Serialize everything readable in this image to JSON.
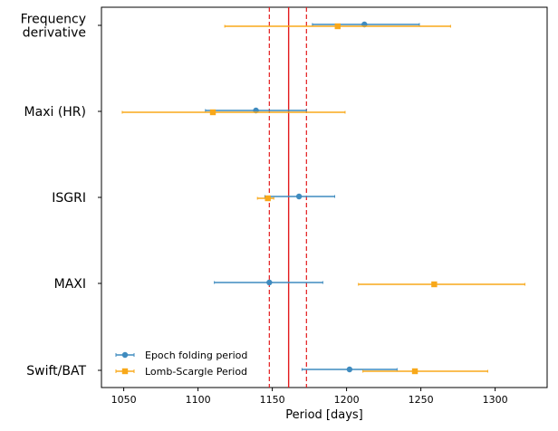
{
  "chart_data": {
    "type": "scatter",
    "title": "",
    "xlabel": "Period [days]",
    "ylabel": "",
    "xlim": [
      1035,
      1335
    ],
    "xticks": [
      1050,
      1100,
      1150,
      1200,
      1250,
      1300
    ],
    "categories": [
      "Frequency derivative",
      "Maxi (HR)",
      "ISGRI",
      "MAXI",
      "Swift/BAT"
    ],
    "category_lines": [
      [
        "Frequency",
        "derivative"
      ],
      [
        "Maxi (HR)"
      ],
      [
        "ISGRI"
      ],
      [
        "MAXI"
      ],
      [
        "Swift/BAT"
      ]
    ],
    "grid": false,
    "legend_position": "lower-left",
    "reference_lines": {
      "solid": 1161,
      "dashed": [
        1148,
        1173
      ],
      "color": "#e31a1c"
    },
    "series": [
      {
        "name": "Epoch folding period",
        "marker": "circle",
        "color": "#3f8bbf",
        "points": [
          {
            "category": "Frequency derivative",
            "value": 1212,
            "low": 1177,
            "high": 1249
          },
          {
            "category": "Maxi (HR)",
            "value": 1139,
            "low": 1105,
            "high": 1173
          },
          {
            "category": "ISGRI",
            "value": 1168,
            "low": 1145,
            "high": 1192
          },
          {
            "category": "MAXI",
            "value": 1148,
            "low": 1111,
            "high": 1184
          },
          {
            "category": "Swift/BAT",
            "value": 1202,
            "low": 1170,
            "high": 1234
          }
        ]
      },
      {
        "name": "Lomb-Scargle Period",
        "marker": "square",
        "color": "#f8a81a",
        "points": [
          {
            "category": "Frequency derivative",
            "value": 1194,
            "low": 1118,
            "high": 1270
          },
          {
            "category": "Maxi (HR)",
            "value": 1110,
            "low": 1049,
            "high": 1199
          },
          {
            "category": "ISGRI",
            "value": 1147,
            "low": 1140,
            "high": 1151
          },
          {
            "category": "MAXI",
            "value": 1259,
            "low": 1208,
            "high": 1320
          },
          {
            "category": "Swift/BAT",
            "value": 1246,
            "low": 1211,
            "high": 1295
          }
        ]
      }
    ]
  }
}
